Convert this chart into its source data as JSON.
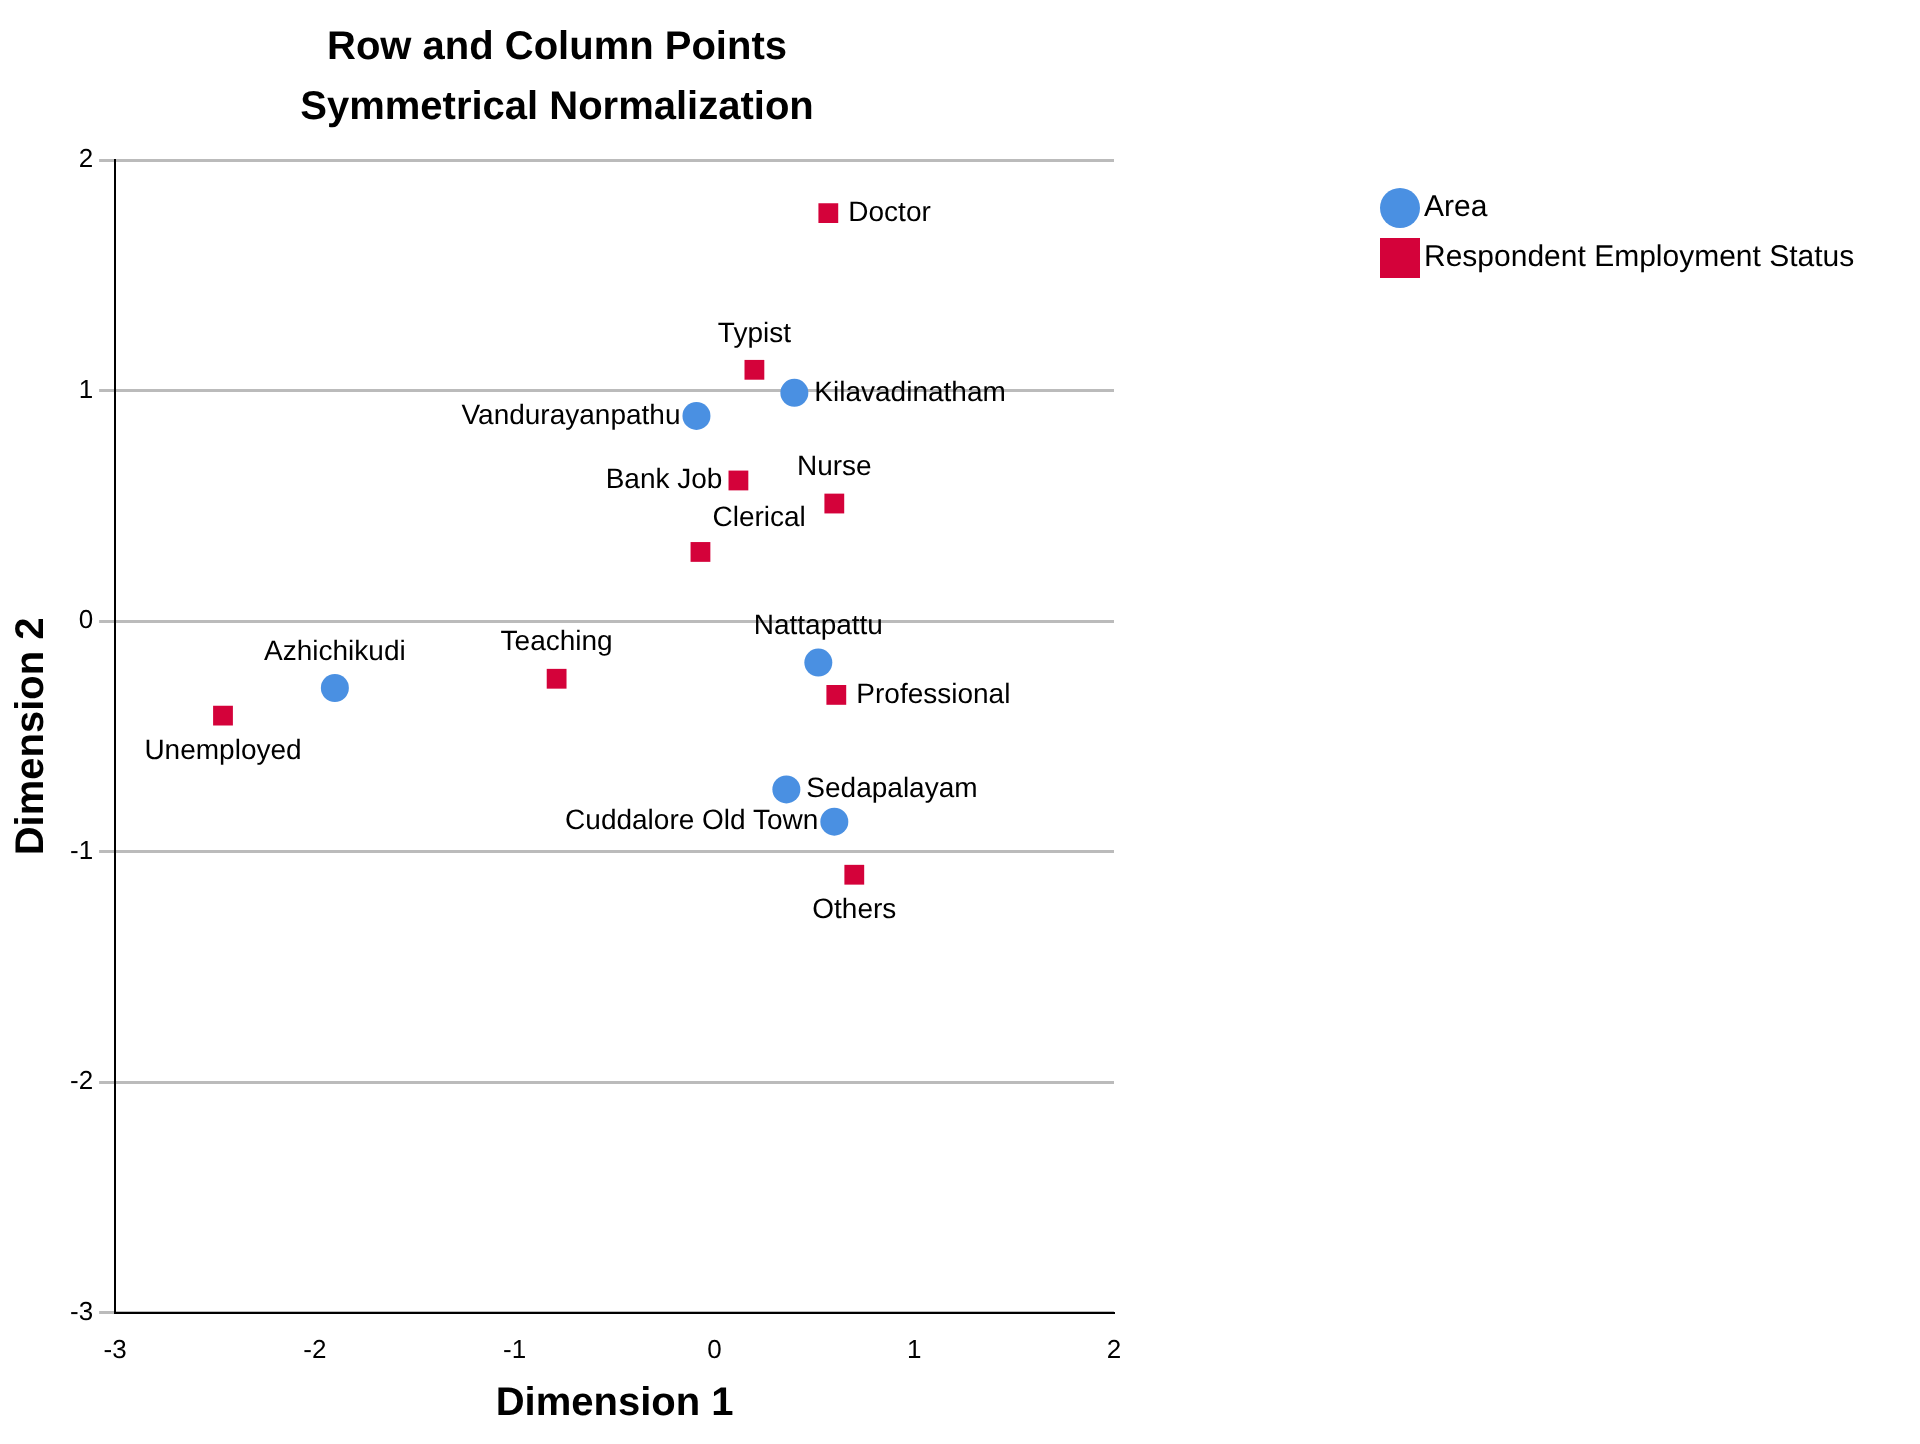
{
  "chart_data": {
    "type": "scatter",
    "title": "Row and Column Points",
    "subtitle": "Symmetrical Normalization",
    "xlabel": "Dimension 1",
    "ylabel": "Dimension 2",
    "xlim": [
      -3,
      2
    ],
    "xticks": [
      -3,
      -2,
      -1,
      0,
      1,
      2
    ],
    "ylim": [
      -3,
      2
    ],
    "yticks": [
      -3,
      -2,
      -1,
      0,
      1,
      2
    ],
    "grid": "y",
    "legend": "top right",
    "series": [
      {
        "name": "Area",
        "color": "#4a90e2",
        "marker": "circle",
        "x": [
          -1.9,
          -0.09,
          0.4,
          0.52,
          0.36,
          0.6
        ],
        "values": [
          -0.29,
          0.89,
          0.99,
          -0.18,
          -0.73,
          -0.87
        ]
      },
      {
        "name": "Respondent Employment Status",
        "color": "#d4023a",
        "marker": "square",
        "x": [
          0.57,
          0.2,
          0.12,
          0.6,
          -0.07,
          -0.79,
          -2.46,
          0.61,
          0.7
        ],
        "values": [
          1.77,
          1.09,
          0.61,
          0.51,
          0.3,
          -0.25,
          -0.41,
          -0.32,
          -1.1
        ]
      }
    ],
    "annotations": [
      {
        "text": "Azhichikudi",
        "x": -1.9,
        "y": -0.29
      },
      {
        "text": "Vandurayanpathu",
        "x": -0.09,
        "y": 0.89
      },
      {
        "text": "Kilavadinatham",
        "x": 0.4,
        "y": 0.99
      },
      {
        "text": "Nattapattu",
        "x": 0.52,
        "y": -0.18
      },
      {
        "text": "Sedapalayam",
        "x": 0.36,
        "y": -0.73
      },
      {
        "text": "Cuddalore Old Town",
        "x": 0.6,
        "y": -0.87
      },
      {
        "text": "Doctor",
        "x": 0.57,
        "y": 1.77
      },
      {
        "text": "Typist",
        "x": 0.2,
        "y": 1.09
      },
      {
        "text": "Bank Job",
        "x": 0.12,
        "y": 0.61
      },
      {
        "text": "Nurse",
        "x": 0.6,
        "y": 0.51
      },
      {
        "text": "Clerical",
        "x": -0.07,
        "y": 0.3
      },
      {
        "text": "Teaching",
        "x": -0.79,
        "y": -0.25
      },
      {
        "text": "Unemployed",
        "x": -2.46,
        "y": -0.41
      },
      {
        "text": "Professional",
        "x": 0.61,
        "y": -0.32
      },
      {
        "text": "Others",
        "x": 0.7,
        "y": -1.1
      }
    ]
  }
}
